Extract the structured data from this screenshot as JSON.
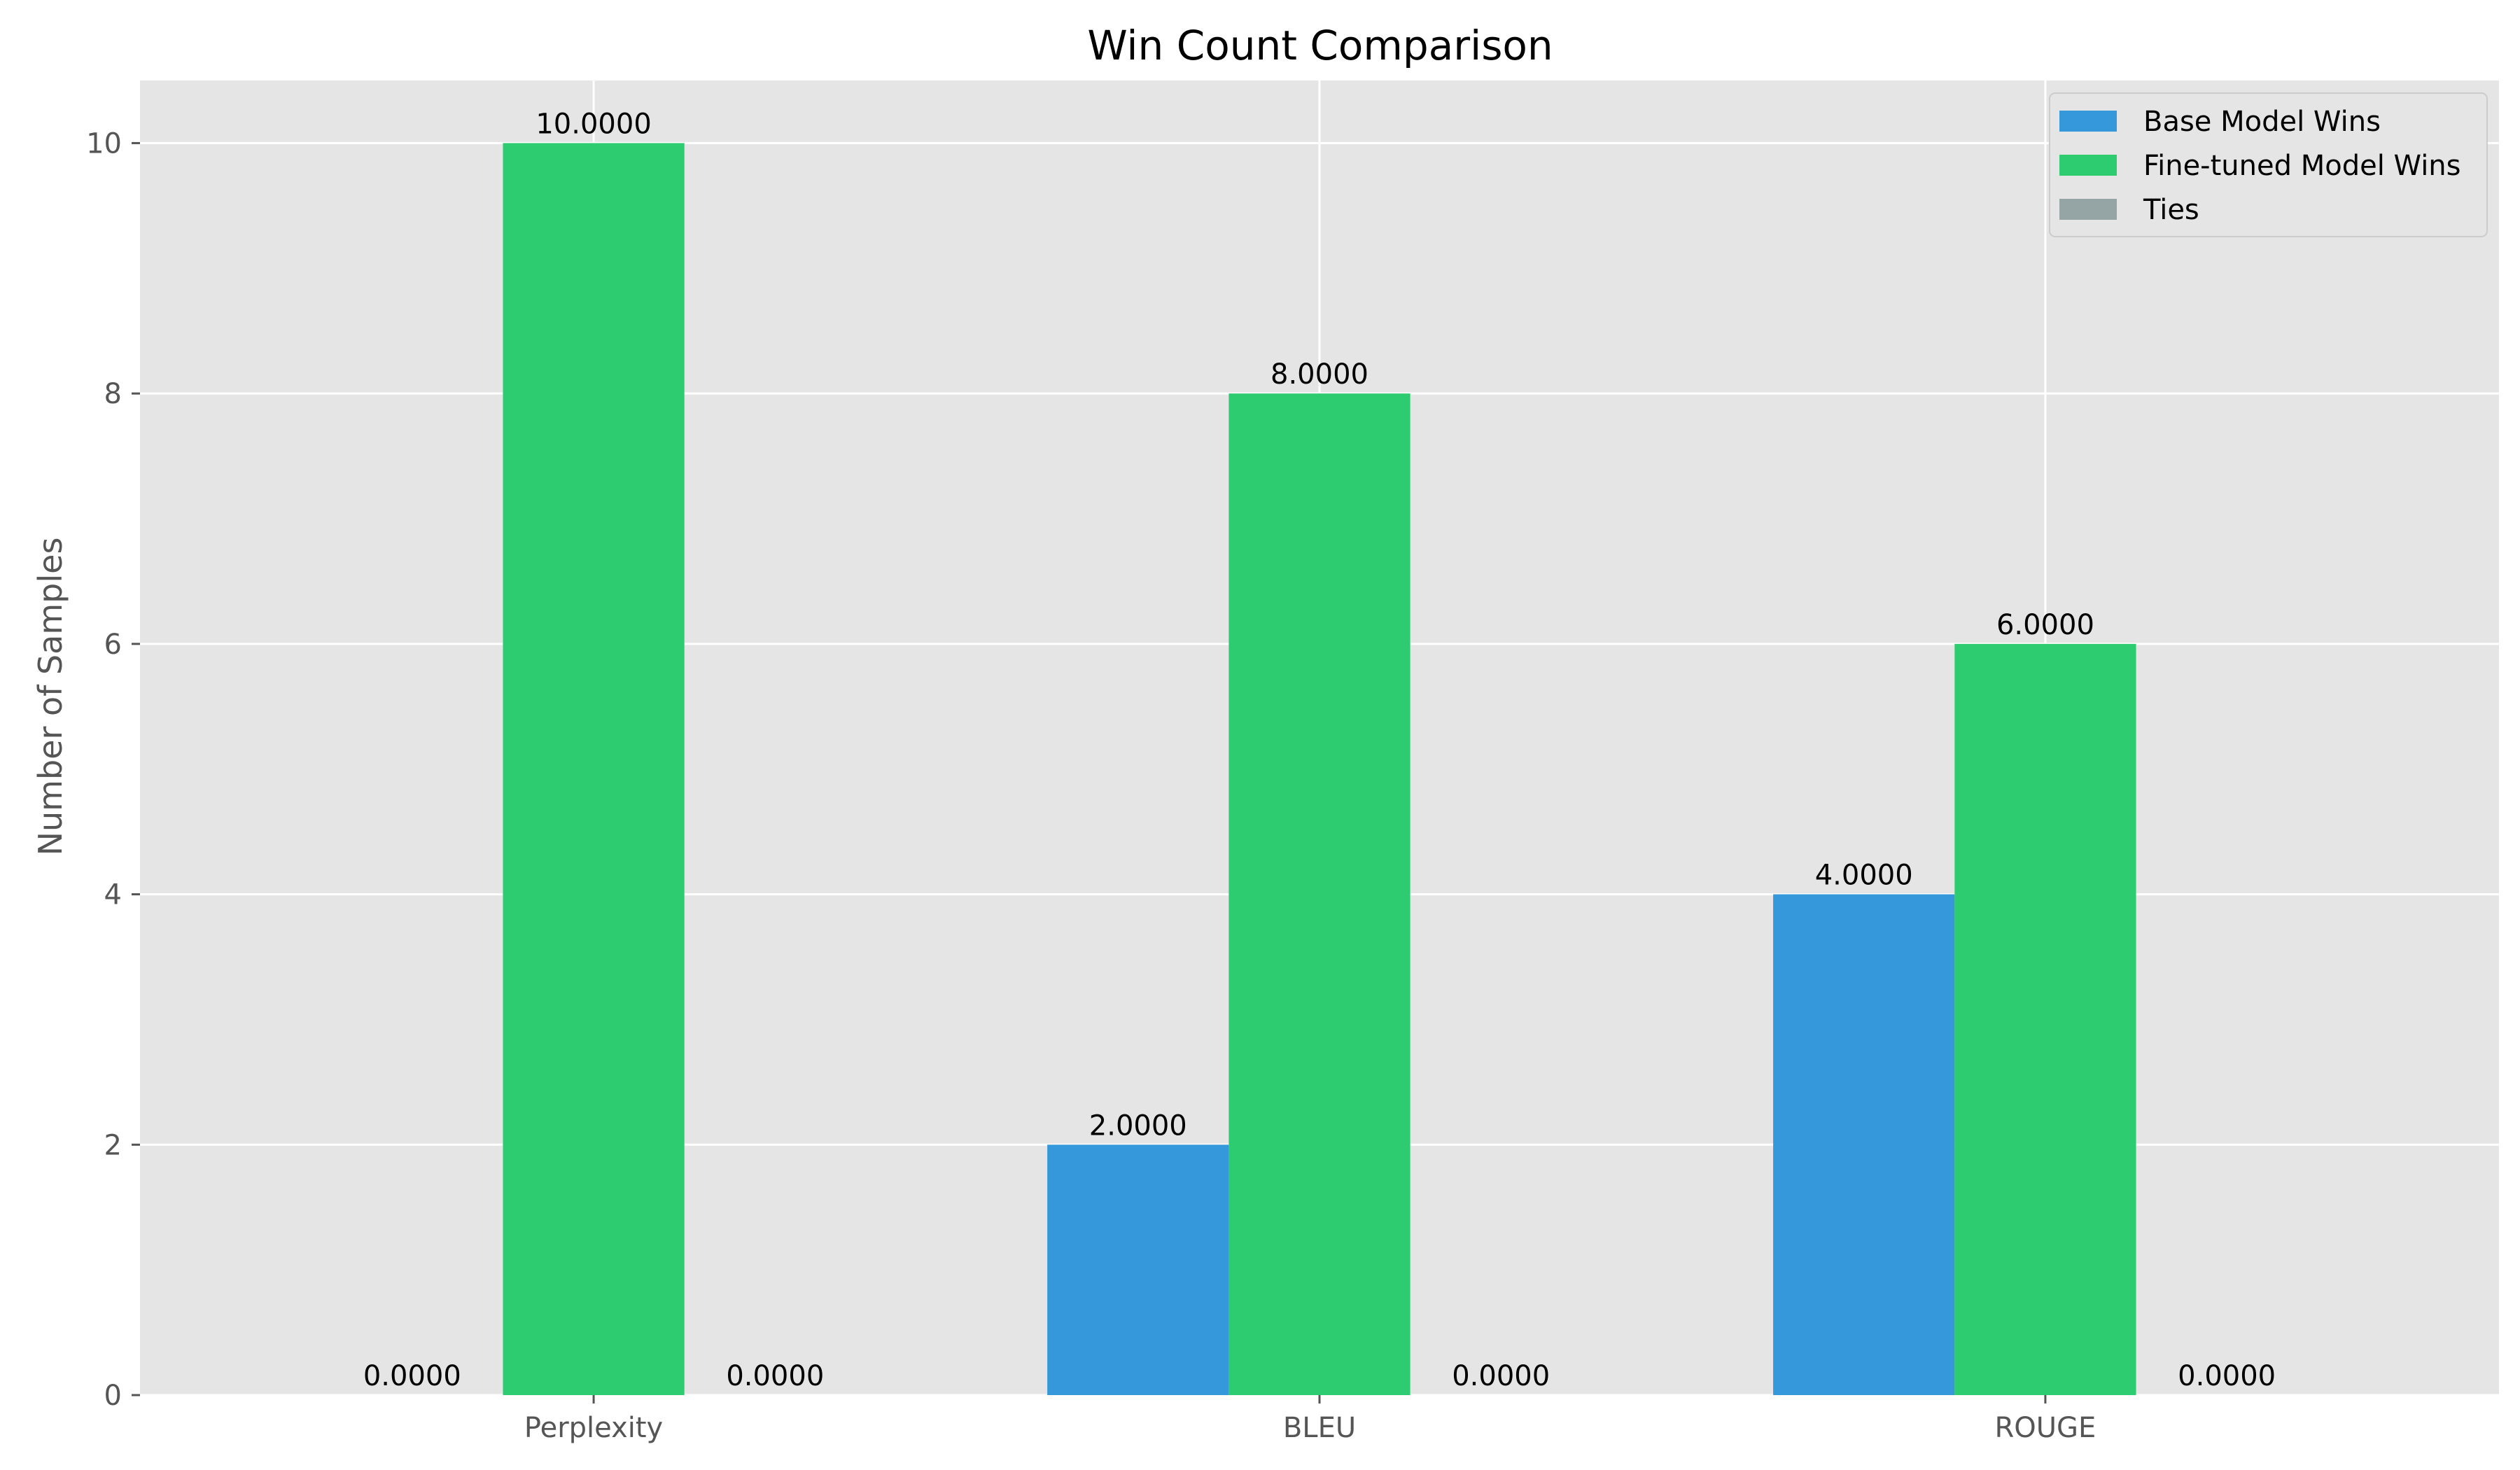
{
  "chart_data": {
    "type": "bar",
    "title": "Win Count Comparison",
    "xlabel": "",
    "ylabel": "Number of Samples",
    "categories": [
      "Perplexity",
      "BLEU",
      "ROUGE"
    ],
    "series": [
      {
        "name": "Base Model Wins",
        "values": [
          0,
          2,
          4
        ],
        "labels": [
          "0.0000",
          "2.0000",
          "4.0000"
        ],
        "color": "#3498db"
      },
      {
        "name": "Fine-tuned Model Wins",
        "values": [
          10,
          8,
          6
        ],
        "labels": [
          "10.0000",
          "8.0000",
          "6.0000"
        ],
        "color": "#2ecc71"
      },
      {
        "name": "Ties",
        "values": [
          0,
          0,
          0
        ],
        "labels": [
          "0.0000",
          "0.0000",
          "0.0000"
        ],
        "color": "#95a5a6"
      }
    ],
    "ylim": [
      0,
      10.5
    ],
    "yticks": [
      0,
      2,
      4,
      6,
      8,
      10
    ],
    "ytick_labels": [
      "0",
      "2",
      "4",
      "6",
      "8",
      "10"
    ],
    "grid": true,
    "legend_position": "top-right",
    "colors": {
      "plot_background": "#e5e5e5",
      "grid": "#ffffff",
      "tick_text": "#555555"
    }
  }
}
